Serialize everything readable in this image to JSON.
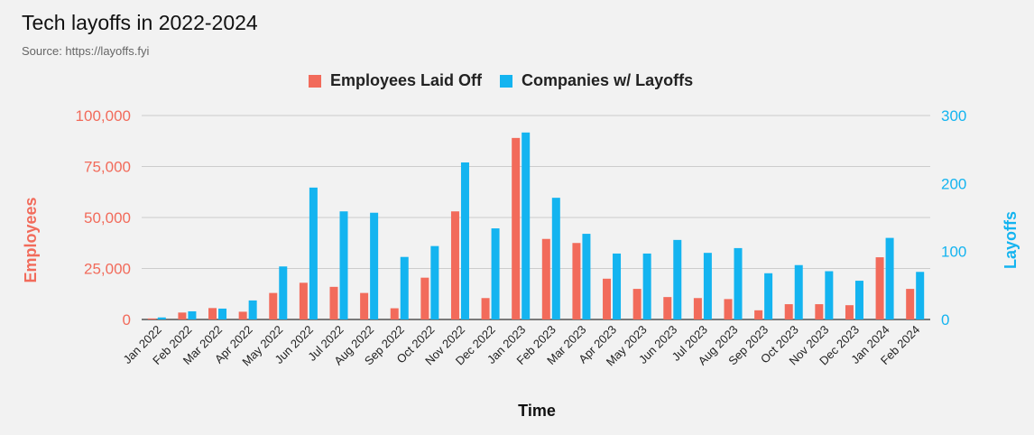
{
  "title": "Tech layoffs in 2022-2024",
  "subtitle": "Source: https://layoffs.fyi",
  "colors": {
    "employees": "#f26b5b",
    "companies": "#14b4f0",
    "grid": "#cccccc"
  },
  "chart_data": {
    "type": "bar",
    "xlabel": "Time",
    "ylabel_left": "Employees",
    "ylabel_right": "Layoffs",
    "ylim_left": [
      0,
      100000
    ],
    "ylim_right": [
      0,
      300
    ],
    "yticks_left": [
      "0",
      "25,000",
      "50,000",
      "75,000",
      "100,000"
    ],
    "yticks_right": [
      "0",
      "100",
      "200",
      "300"
    ],
    "grid": true,
    "legend_position": "top",
    "categories": [
      "Jan 2022",
      "Feb 2022",
      "Mar 2022",
      "Apr 2022",
      "May 2022",
      "Jun 2022",
      "Jul 2022",
      "Aug 2022",
      "Sep 2022",
      "Oct 2022",
      "Nov 2022",
      "Dec 2022",
      "Jan 2023",
      "Feb 2023",
      "Mar 2023",
      "Apr 2023",
      "May 2023",
      "Jun 2023",
      "Jul 2023",
      "Aug 2023",
      "Sep 2023",
      "Oct 2023",
      "Nov 2023",
      "Dec 2023",
      "Jan 2024",
      "Feb 2024"
    ],
    "series": [
      {
        "name": "Employees Laid Off",
        "axis": "left",
        "values": [
          500,
          3400,
          5600,
          3800,
          13000,
          18000,
          16000,
          13000,
          5500,
          20500,
          53000,
          10500,
          89000,
          39500,
          37500,
          20000,
          15000,
          11000,
          10500,
          10000,
          4500,
          7500,
          7500,
          7000,
          30500,
          15000
        ]
      },
      {
        "name": "Companies w/ Layoffs",
        "axis": "right",
        "values": [
          3,
          12,
          16,
          28,
          78,
          194,
          159,
          157,
          92,
          108,
          231,
          134,
          275,
          179,
          126,
          97,
          97,
          117,
          98,
          105,
          68,
          80,
          71,
          57,
          120,
          70
        ]
      }
    ]
  }
}
